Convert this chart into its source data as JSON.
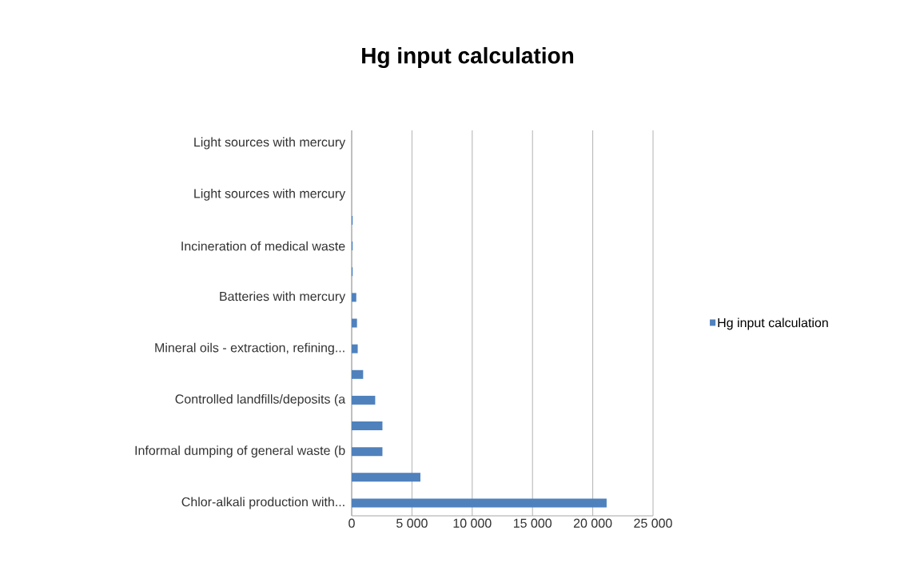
{
  "chart_data": {
    "type": "bar",
    "orientation": "horizontal",
    "title": "Hg input calculation",
    "categories": [
      "Light sources with mercury",
      null,
      "Light sources with mercury",
      null,
      "Incineration of medical waste",
      null,
      "Batteries with mercury",
      null,
      "Mineral oils - extraction, refining...",
      null,
      "Controlled landfills/deposits (a",
      null,
      "Informal dumping of general waste (b",
      null,
      "Chlor-alkali production with..."
    ],
    "series": [
      {
        "name": "Hg input calculation",
        "color": "#4f81bd",
        "values": [
          0,
          0,
          0,
          80,
          80,
          80,
          380,
          440,
          500,
          950,
          1950,
          2550,
          2550,
          5700,
          21150
        ]
      }
    ],
    "xlim": [
      0,
      25000
    ],
    "xticks": [
      0,
      {
        "value": 5000,
        "label": "5 000"
      },
      {
        "value": 10000,
        "label": "10 000"
      },
      {
        "value": 15000,
        "label": "15 000"
      },
      {
        "value": 20000,
        "label": "20 000"
      },
      {
        "value": 25000,
        "label": "25 000"
      }
    ],
    "grid": "x",
    "legend": "right"
  }
}
